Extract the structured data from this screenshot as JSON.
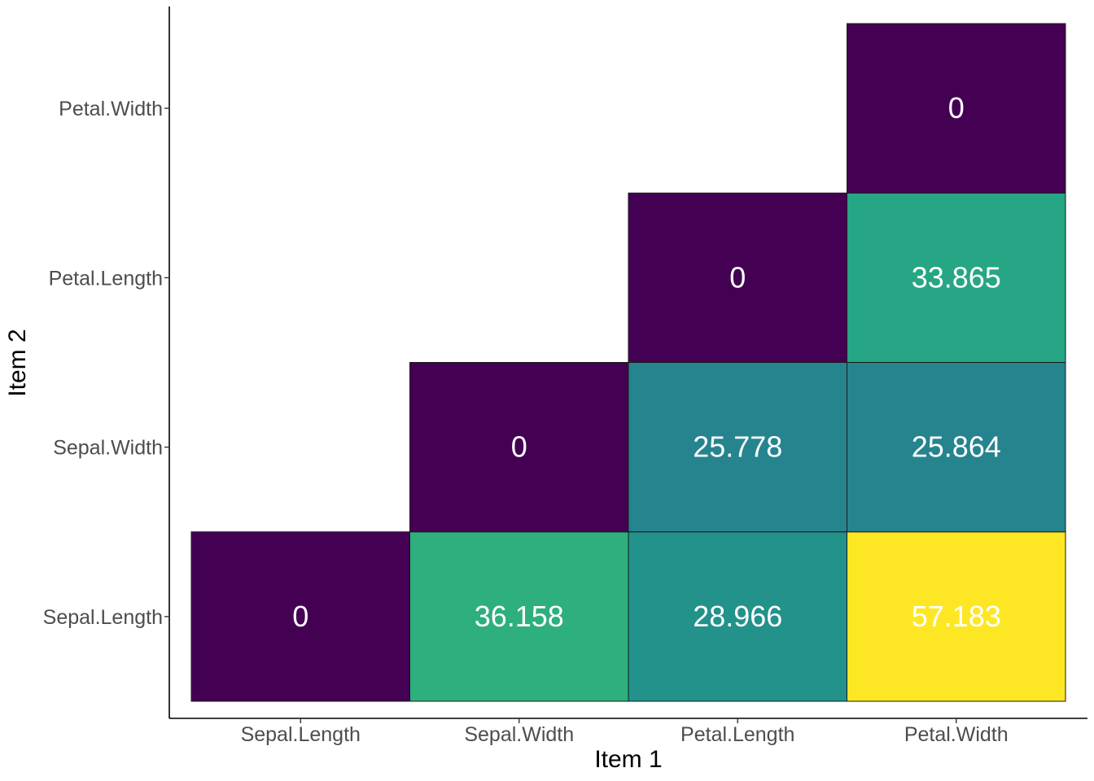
{
  "chart_data": {
    "type": "heatmap",
    "title": "",
    "xlabel": "Item 1",
    "ylabel": "Item 2",
    "x_categories": [
      "Sepal.Length",
      "Sepal.Width",
      "Petal.Length",
      "Petal.Width"
    ],
    "y_categories": [
      "Sepal.Length",
      "Sepal.Width",
      "Petal.Length",
      "Petal.Width"
    ],
    "cells": [
      {
        "x": "Sepal.Length",
        "y": "Sepal.Length",
        "value": 0,
        "label": "0"
      },
      {
        "x": "Sepal.Width",
        "y": "Sepal.Length",
        "value": 36.158,
        "label": "36.158"
      },
      {
        "x": "Petal.Length",
        "y": "Sepal.Length",
        "value": 28.966,
        "label": "28.966"
      },
      {
        "x": "Petal.Width",
        "y": "Sepal.Length",
        "value": 57.183,
        "label": "57.183"
      },
      {
        "x": "Sepal.Width",
        "y": "Sepal.Width",
        "value": 0,
        "label": "0"
      },
      {
        "x": "Petal.Length",
        "y": "Sepal.Width",
        "value": 25.778,
        "label": "25.778"
      },
      {
        "x": "Petal.Width",
        "y": "Sepal.Width",
        "value": 25.864,
        "label": "25.864"
      },
      {
        "x": "Petal.Length",
        "y": "Petal.Length",
        "value": 0,
        "label": "0"
      },
      {
        "x": "Petal.Width",
        "y": "Petal.Length",
        "value": 33.865,
        "label": "33.865"
      },
      {
        "x": "Petal.Width",
        "y": "Petal.Width",
        "value": 0,
        "label": "0"
      }
    ],
    "value_range": [
      0,
      57.183
    ],
    "colormap": "viridis",
    "legend": "none",
    "grid": false
  }
}
